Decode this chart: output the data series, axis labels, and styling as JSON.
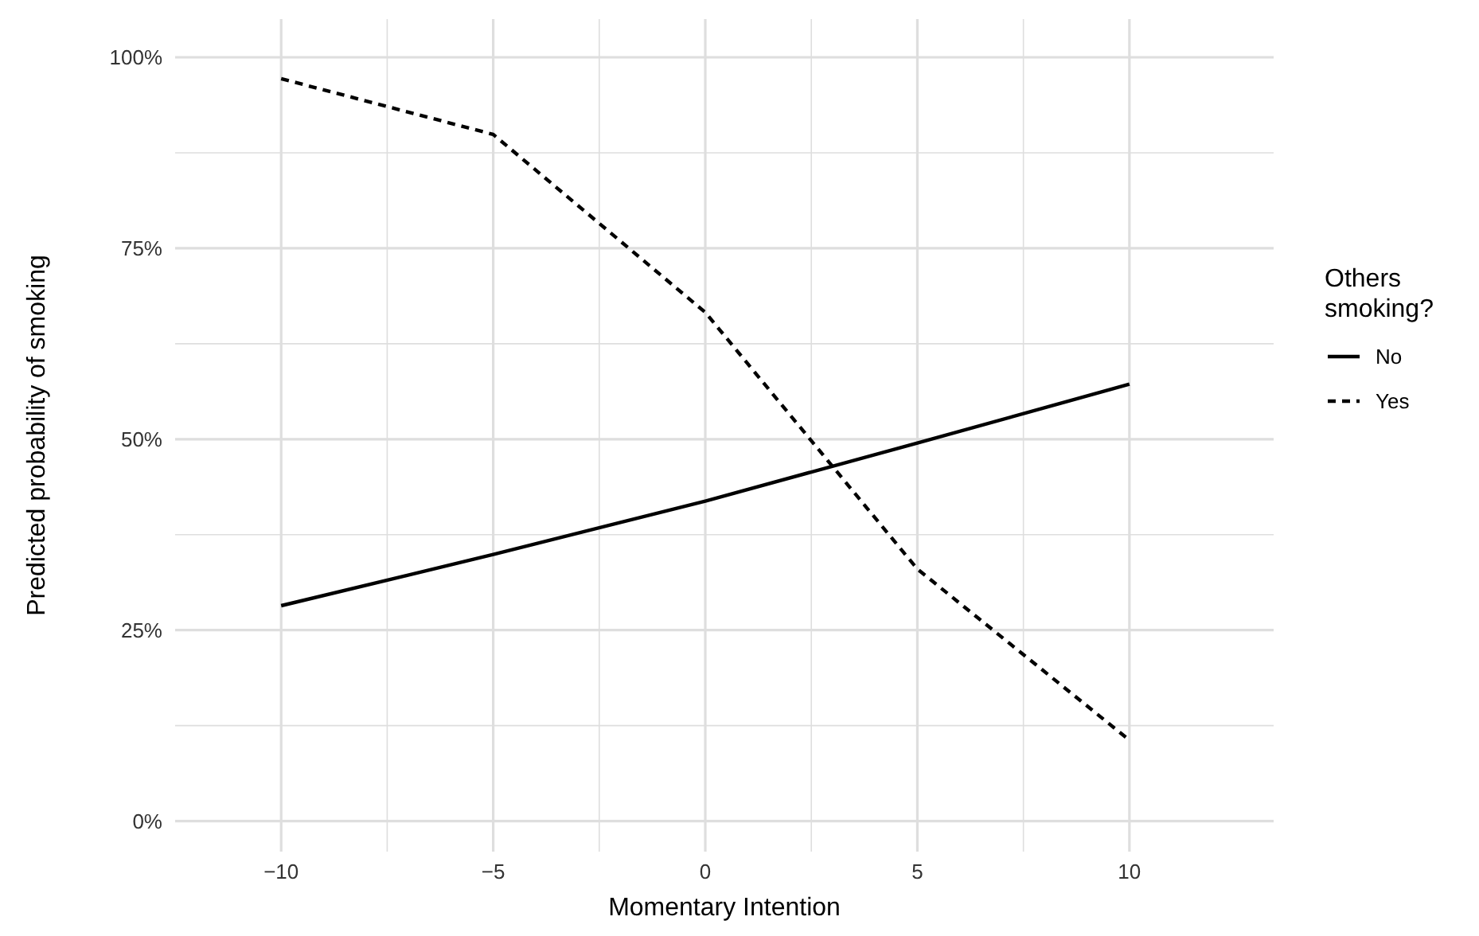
{
  "chart_data": {
    "type": "line",
    "xlabel": "Momentary Intention",
    "ylabel": "Predicted probability of smoking",
    "legend_title": "Others smoking?",
    "legend": "right",
    "grid": true,
    "x": [
      -10,
      -5,
      0,
      5,
      10
    ],
    "xlim": [
      -12.5,
      13.4
    ],
    "xticks": [
      {
        "value": -10,
        "label": "−10"
      },
      {
        "value": -7.5,
        "label": null
      },
      {
        "value": -5,
        "label": "−5"
      },
      {
        "value": -2.5,
        "label": null
      },
      0,
      {
        "value": 2.5,
        "label": null
      },
      5,
      {
        "value": 7.5,
        "label": null
      },
      10
    ],
    "ylim": [
      -4,
      105
    ],
    "yticks": [
      {
        "value": 0,
        "label": "0%"
      },
      {
        "value": 12.5,
        "label": null
      },
      {
        "value": 25,
        "label": "25%"
      },
      {
        "value": 37.5,
        "label": null
      },
      {
        "value": 50,
        "label": "50%"
      },
      {
        "value": 62.5,
        "label": null
      },
      {
        "value": 75,
        "label": "75%"
      },
      {
        "value": 87.5,
        "label": null
      },
      {
        "value": 100,
        "label": "100%"
      }
    ],
    "series": [
      {
        "name": "No",
        "color": "#000000",
        "line_style": "solid",
        "values": [
          28.2,
          34.9,
          41.9,
          49.5,
          57.2
        ]
      },
      {
        "name": "Yes",
        "color": "#000000",
        "line_style": "dashed",
        "values": [
          97.2,
          89.9,
          66.6,
          33,
          10.6
        ]
      }
    ]
  }
}
